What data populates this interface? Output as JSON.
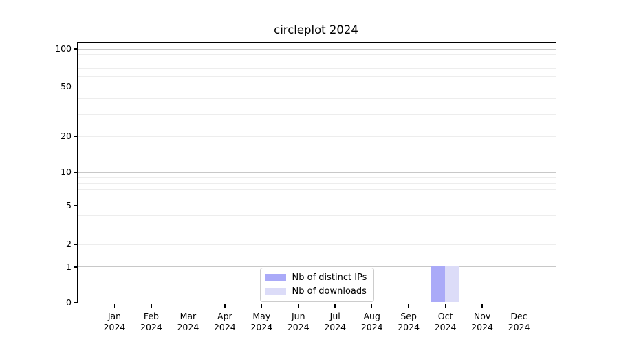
{
  "chart_data": {
    "type": "bar",
    "title": "circleplot 2024",
    "categories": [
      "Jan",
      "Feb",
      "Mar",
      "Apr",
      "May",
      "Jun",
      "Jul",
      "Aug",
      "Sep",
      "Oct",
      "Nov",
      "Dec"
    ],
    "year_label": "2024",
    "series": [
      {
        "name": "Nb of distinct IPs",
        "color": "#aaaaf8",
        "values": [
          0,
          0,
          0,
          0,
          0,
          0,
          0,
          0,
          0,
          1,
          0,
          0
        ]
      },
      {
        "name": "Nb of downloads",
        "color": "#dcdcf8",
        "values": [
          0,
          0,
          0,
          0,
          0,
          0,
          0,
          0,
          0,
          1,
          0,
          0
        ]
      }
    ],
    "xlabel": "",
    "ylabel": "",
    "yscale": "log1p",
    "ylim": [
      0,
      112
    ],
    "y_ticks": [
      {
        "value": 0,
        "label": "0"
      },
      {
        "value": 1,
        "label": "1"
      },
      {
        "value": 2,
        "label": "2"
      },
      {
        "value": 5,
        "label": "5"
      },
      {
        "value": 10,
        "label": "10"
      },
      {
        "value": 20,
        "label": "20"
      },
      {
        "value": 50,
        "label": "50"
      },
      {
        "value": 100,
        "label": "100"
      }
    ],
    "y_major_gridlines": [
      1,
      10,
      100
    ],
    "y_minor_gridlines": [
      2,
      3,
      4,
      5,
      6,
      7,
      8,
      9,
      20,
      30,
      40,
      50,
      60,
      70,
      80,
      90
    ],
    "grid": "horizontal",
    "legend_position": "lower center",
    "colors": {
      "major_grid": "#c8c8c8",
      "minor_grid": "#ededed",
      "spine": "#000000",
      "text": "#000000",
      "legend_border": "#cccccc"
    }
  }
}
